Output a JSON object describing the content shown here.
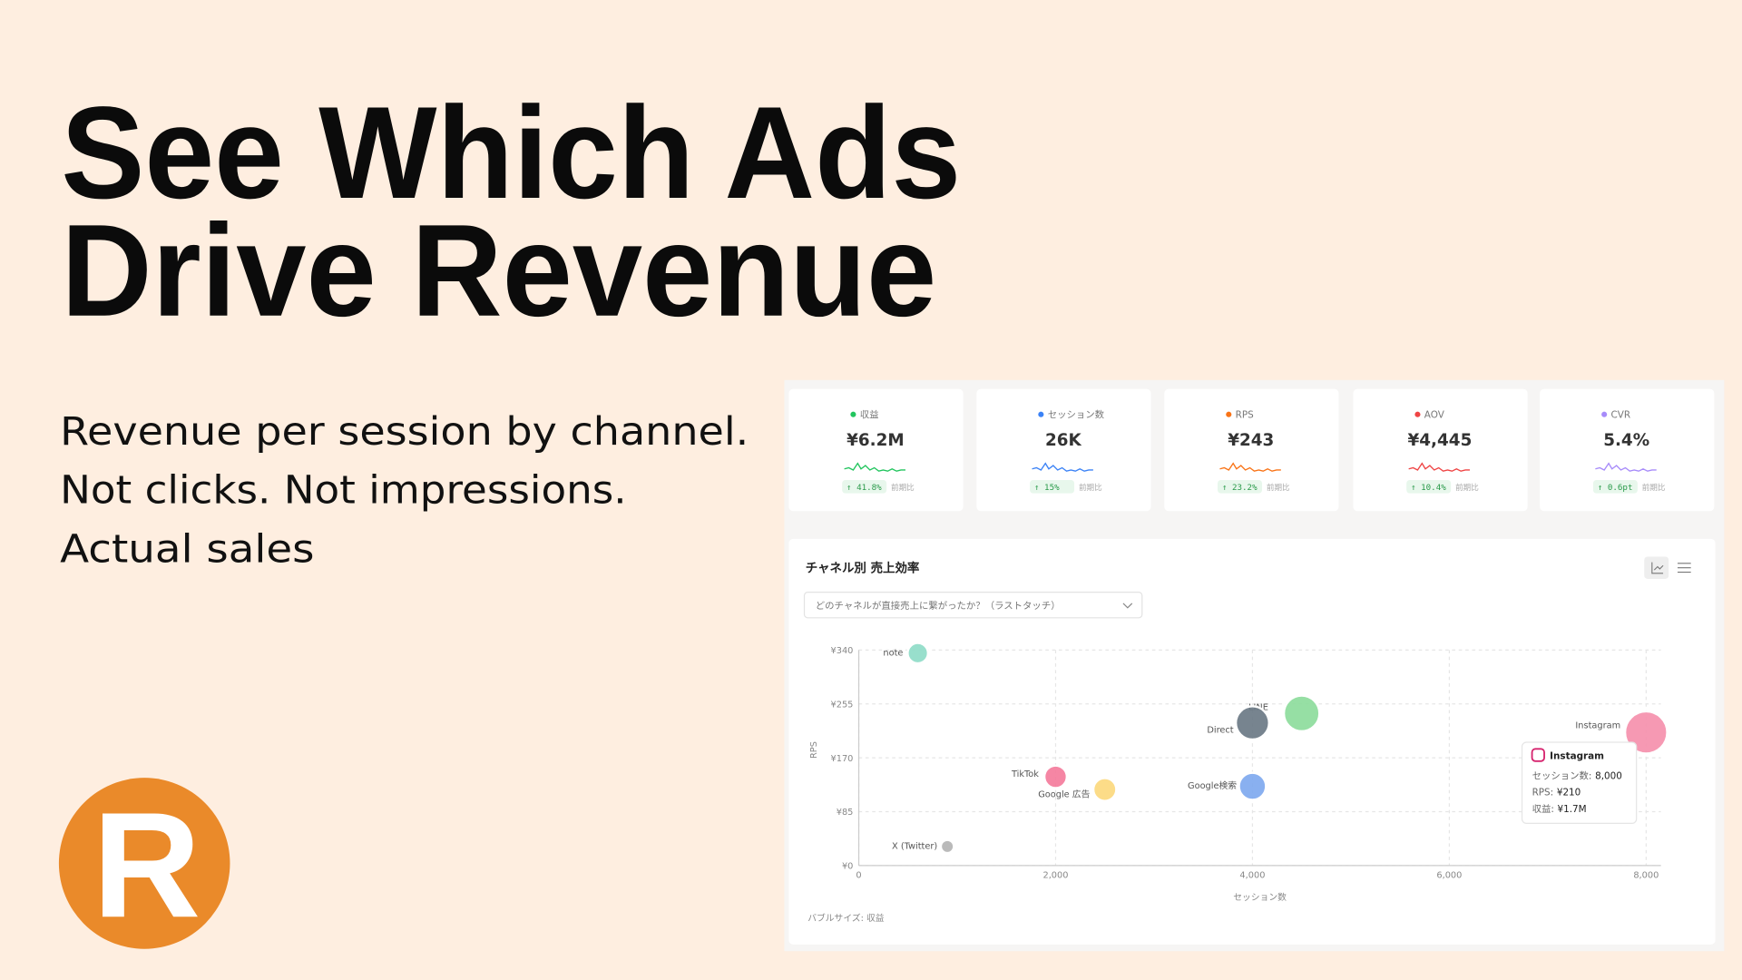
{
  "headline": [
    "See Which Ads",
    "Drive Revenue"
  ],
  "tagline": [
    "Revenue per session by channel.",
    "Not clicks. Not impressions.",
    "Actual sales"
  ],
  "logo": "R",
  "kpis": [
    {
      "label": "収益",
      "value": "¥6.2M",
      "change": "↑ 41.8%",
      "compare": "前期比",
      "color": "#22c55e"
    },
    {
      "label": "セッション数",
      "value": "26K",
      "change": "↑ 15%",
      "compare": "前期比",
      "color": "#3b82f6"
    },
    {
      "label": "RPS",
      "value": "¥243",
      "change": "↑ 23.2%",
      "compare": "前期比",
      "color": "#f97316"
    },
    {
      "label": "AOV",
      "value": "¥4,445",
      "change": "↑ 10.4%",
      "compare": "前期比",
      "color": "#ef4444"
    },
    {
      "label": "CVR",
      "value": "5.4%",
      "change": "↑ 0.6pt",
      "compare": "前期比",
      "color": "#a78bfa"
    }
  ],
  "chart_data": {
    "type": "bubble",
    "title": "チャネル別 売上効率",
    "dropdown": "どのチャネルが直接売上に繋がったか？（ラストタッチ）",
    "x_label": "セッション数",
    "y_label": "RPS",
    "size_note": "バブルサイズ: 収益",
    "xlim": [
      0,
      8150
    ],
    "ylim": [
      0,
      340
    ],
    "xticks": [
      0,
      {
        "value": 2000,
        "label": "2,000"
      },
      {
        "value": 4000,
        "label": "4,000"
      },
      {
        "value": 6000,
        "label": "6,000"
      },
      {
        "value": 8000,
        "label": "8,000"
      }
    ],
    "yticks": [
      {
        "value": 0,
        "label": "¥0"
      },
      {
        "value": 85,
        "label": "¥85"
      },
      {
        "value": 170,
        "label": "¥170"
      },
      {
        "value": 255,
        "label": "¥255"
      },
      {
        "value": 340,
        "label": "¥340"
      }
    ],
    "grid": true,
    "series": [
      {
        "name": "note",
        "x": 600,
        "y": 335,
        "size": 201000,
        "color": "#8fdcc8"
      },
      {
        "name": "LINE",
        "x": 4500,
        "y": 240,
        "size": 1080000,
        "color": "#8ddc9c"
      },
      {
        "name": "Direct",
        "x": 4000,
        "y": 225,
        "size": 900000,
        "color": "#6b7a86"
      },
      {
        "name": "Instagram",
        "x": 8000,
        "y": 210,
        "size": 1680000,
        "color": "#f590ac"
      },
      {
        "name": "TikTok",
        "x": 2000,
        "y": 140,
        "size": 280000,
        "color": "#f47c9c"
      },
      {
        "name": "Google 広告",
        "x": 2500,
        "y": 120,
        "size": 300000,
        "color": "#fcd97e"
      },
      {
        "name": "Google検索",
        "x": 4000,
        "y": 125,
        "size": 500000,
        "color": "#7fa9ef"
      },
      {
        "name": "X (Twitter)",
        "x": 900,
        "y": 30,
        "size": 27000,
        "color": "#b4b4b4"
      }
    ],
    "tooltip": {
      "title": "Instagram",
      "rows": [
        {
          "label": "セッション数:",
          "value": "8,000"
        },
        {
          "label": "RPS:",
          "value": "¥210"
        },
        {
          "label": "収益:",
          "value": "¥1.7M"
        }
      ]
    }
  }
}
